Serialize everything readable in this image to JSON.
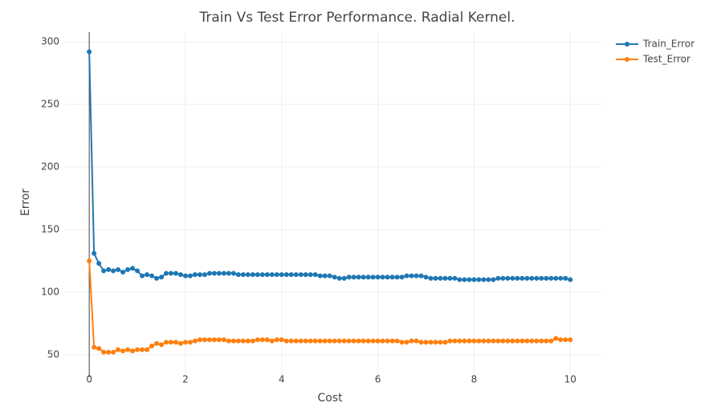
{
  "chart_data": {
    "type": "line",
    "title": "Train Vs Test Error Performance. Radial Kernel.",
    "x_label": "Cost",
    "y_label": "Error",
    "x": [
      0,
      0.1,
      0.2,
      0.3,
      0.4,
      0.5,
      0.6,
      0.7,
      0.8,
      0.9,
      1,
      1.1,
      1.2,
      1.3,
      1.4,
      1.5,
      1.6,
      1.7,
      1.8,
      1.9,
      2,
      2.1,
      2.2,
      2.3,
      2.4,
      2.5,
      2.6,
      2.7,
      2.8,
      2.9,
      3,
      3.1,
      3.2,
      3.3,
      3.4,
      3.5,
      3.6,
      3.7,
      3.8,
      3.9,
      4,
      4.1,
      4.2,
      4.3,
      4.4,
      4.5,
      4.6,
      4.7,
      4.8,
      4.9,
      5,
      5.1,
      5.2,
      5.3,
      5.4,
      5.5,
      5.6,
      5.7,
      5.8,
      5.9,
      6,
      6.1,
      6.2,
      6.3,
      6.4,
      6.5,
      6.6,
      6.7,
      6.8,
      6.9,
      7,
      7.1,
      7.2,
      7.3,
      7.4,
      7.5,
      7.6,
      7.7,
      7.8,
      7.9,
      8,
      8.1,
      8.2,
      8.3,
      8.4,
      8.5,
      8.6,
      8.7,
      8.8,
      8.9,
      9,
      9.1,
      9.2,
      9.3,
      9.4,
      9.5,
      9.6,
      9.7,
      9.8,
      9.9,
      10
    ],
    "series": [
      {
        "name": "Train_Error",
        "color": "#1f77b4",
        "values": [
          292,
          131,
          123,
          117,
          118,
          117,
          118,
          116,
          118,
          119,
          117,
          113,
          114,
          113,
          111,
          112,
          115,
          115,
          115,
          114,
          113,
          113,
          114,
          114,
          114,
          115,
          115,
          115,
          115,
          115,
          115,
          114,
          114,
          114,
          114,
          114,
          114,
          114,
          114,
          114,
          114,
          114,
          114,
          114,
          114,
          114,
          114,
          114,
          113,
          113,
          113,
          112,
          111,
          111,
          112,
          112,
          112,
          112,
          112,
          112,
          112,
          112,
          112,
          112,
          112,
          112,
          113,
          113,
          113,
          113,
          112,
          111,
          111,
          111,
          111,
          111,
          111,
          110,
          110,
          110,
          110,
          110,
          110,
          110,
          110,
          111,
          111,
          111,
          111,
          111,
          111,
          111,
          111,
          111,
          111,
          111,
          111,
          111,
          111,
          111,
          110
        ]
      },
      {
        "name": "Test_Error",
        "color": "#ff7f0e",
        "values": [
          125,
          56,
          55,
          52,
          52,
          52,
          54,
          53,
          54,
          53,
          54,
          54,
          54,
          57,
          59,
          58,
          60,
          60,
          60,
          59,
          60,
          60,
          61,
          62,
          62,
          62,
          62,
          62,
          62,
          61,
          61,
          61,
          61,
          61,
          61,
          62,
          62,
          62,
          61,
          62,
          62,
          61,
          61,
          61,
          61,
          61,
          61,
          61,
          61,
          61,
          61,
          61,
          61,
          61,
          61,
          61,
          61,
          61,
          61,
          61,
          61,
          61,
          61,
          61,
          61,
          60,
          60,
          61,
          61,
          60,
          60,
          60,
          60,
          60,
          60,
          61,
          61,
          61,
          61,
          61,
          61,
          61,
          61,
          61,
          61,
          61,
          61,
          61,
          61,
          61,
          61,
          61,
          61,
          61,
          61,
          61,
          61,
          63,
          62,
          62,
          62
        ]
      }
    ],
    "xlim": [
      -0.52,
      10.63
    ],
    "xticks": [
      0,
      2,
      4,
      6,
      8,
      10
    ],
    "ylim": [
      32,
      307.7
    ],
    "yticks": [
      50,
      100,
      150,
      200,
      250,
      300
    ],
    "grid": true,
    "legend": "top-right"
  }
}
